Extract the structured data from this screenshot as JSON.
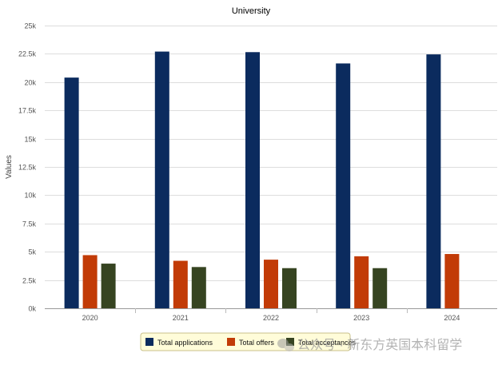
{
  "chart_data": {
    "type": "bar",
    "title": "University",
    "xlabel": "",
    "ylabel": "Values",
    "categories": [
      "2020",
      "2021",
      "2022",
      "2023",
      "2024"
    ],
    "series": [
      {
        "name": "Total applications",
        "color": "#0b2b5e",
        "values": [
          20400,
          22700,
          22650,
          21650,
          22450
        ]
      },
      {
        "name": "Total offers",
        "color": "#c23b07",
        "values": [
          4700,
          4200,
          4300,
          4600,
          4800
        ]
      },
      {
        "name": "Total acceptances",
        "color": "#364421",
        "values": [
          3950,
          3650,
          3550,
          3550,
          null
        ]
      }
    ],
    "ylim": [
      0,
      25000
    ],
    "yticks": [
      {
        "value": 0,
        "label": "0k"
      },
      {
        "value": 2500,
        "label": "2.5k"
      },
      {
        "value": 5000,
        "label": "5k"
      },
      {
        "value": 7500,
        "label": "7.5k"
      },
      {
        "value": 10000,
        "label": "10k"
      },
      {
        "value": 12500,
        "label": "12.5k"
      },
      {
        "value": 15000,
        "label": "15k"
      },
      {
        "value": 17500,
        "label": "17.5k"
      },
      {
        "value": 20000,
        "label": "20k"
      },
      {
        "value": 22500,
        "label": "22.5k"
      },
      {
        "value": 25000,
        "label": "25k"
      }
    ],
    "grid": true,
    "legend_position": "bottom"
  },
  "watermark": {
    "text": "公众号 · 新东方英国本科留学",
    "icon": "wechat-icon"
  }
}
